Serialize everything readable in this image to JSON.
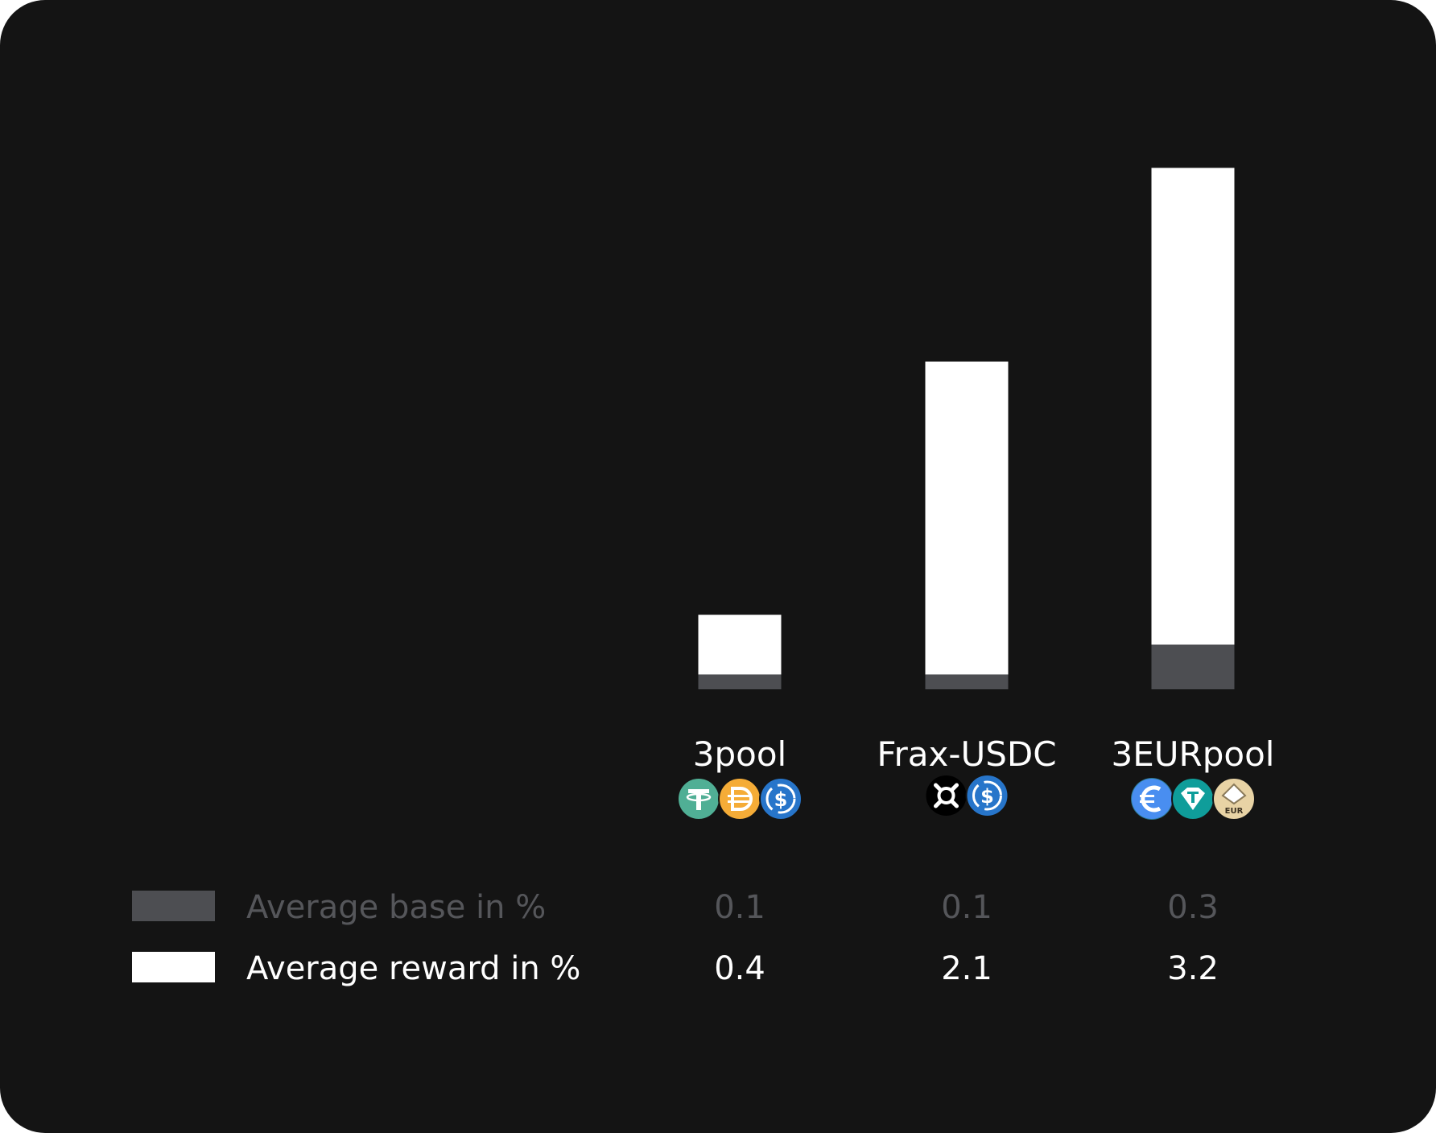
{
  "chart_data": {
    "type": "bar",
    "stacked": true,
    "categories": [
      "3pool",
      "Frax-USDC",
      "3EURpool"
    ],
    "series": [
      {
        "name": "Average base in %",
        "values": [
          0.1,
          0.1,
          0.3
        ],
        "color": "#4d4e52"
      },
      {
        "name": "Average reward in %",
        "values": [
          0.4,
          2.1,
          3.2
        ],
        "color": "#ffffff"
      }
    ],
    "ylim": [
      0,
      3.5
    ],
    "grid": false,
    "legend_placement": "bottom-left",
    "category_icons": [
      [
        "tether-icon",
        "dai-icon",
        "usdc-icon"
      ],
      [
        "frax-icon",
        "usdc-icon"
      ],
      [
        "euro-coin-icon",
        "eurt-icon",
        "ageur-icon"
      ]
    ],
    "icon_colors": {
      "tether-icon": "#50af95",
      "dai-icon": "#f5ac37",
      "usdc-icon": "#2775ca",
      "frax-icon": "#000000",
      "euro-coin-icon": "#5b4bf0",
      "eurt-icon": "#0f9d9a",
      "ageur-icon": "#e8d3a5"
    },
    "icon_glyph_text": {
      "ageur-icon": "EUR"
    }
  },
  "colors": {
    "background": "#141414",
    "base": "#4d4e52",
    "reward": "#ffffff",
    "base_text": "#55565a",
    "reward_text": "#ffffff"
  }
}
